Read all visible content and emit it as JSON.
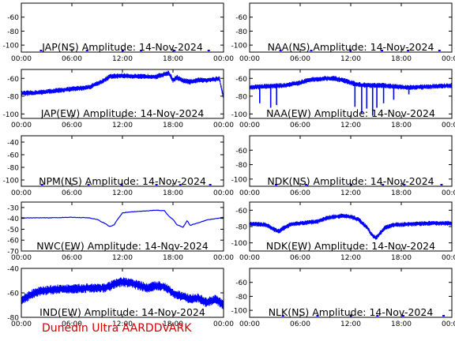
{
  "figure": {
    "credit": "Dunedin Ultra AARDDVARK",
    "line_color": "#0000ff",
    "credit_color": "#d00000"
  },
  "chart_data": [
    {
      "type": "line",
      "title": "JAP(NS) Amplitude: 14-Nov-2024",
      "xlabel": "",
      "ylabel": "",
      "x_ticks": [
        "00:00",
        "06:00",
        "12:00",
        "18:00",
        "00:00"
      ],
      "y_ticks": [
        -60,
        -80,
        -100
      ],
      "ylim": [
        -110,
        -40
      ],
      "grid": false,
      "series": [
        {
          "x": [],
          "y": []
        }
      ]
    },
    {
      "type": "line",
      "title": "NAA(NS) Amplitude: 14-Nov-2024",
      "xlabel": "",
      "ylabel": "",
      "x_ticks": [
        "00:00",
        "06:00",
        "12:00",
        "18:00",
        "00:00"
      ],
      "y_ticks": [
        -60,
        -80,
        -100
      ],
      "ylim": [
        -110,
        -40
      ],
      "grid": false,
      "series": [
        {
          "x": [],
          "y": []
        }
      ]
    },
    {
      "type": "line",
      "title": "JAP(EW) Amplitude: 14-Nov-2024",
      "xlabel": "",
      "ylabel": "",
      "x_ticks": [
        "00:00",
        "06:00",
        "12:00",
        "18:00",
        "00:00"
      ],
      "y_ticks": [
        -60,
        -80,
        -100
      ],
      "ylim": [
        -105,
        -50
      ],
      "grid": false,
      "noise": 3,
      "series": [
        {
          "x": [
            0,
            2,
            4,
            6,
            8,
            9.5,
            10.5,
            12,
            14,
            16,
            17.5,
            18,
            18.5,
            19,
            20,
            21,
            22,
            23,
            23.5,
            23.8,
            24
          ],
          "y": [
            -77,
            -76,
            -74,
            -72,
            -70,
            -64,
            -58,
            -57,
            -58,
            -58,
            -54,
            -62,
            -59,
            -62,
            -64,
            -62,
            -62,
            -61,
            -60,
            -74,
            -80
          ]
        }
      ]
    },
    {
      "type": "line",
      "title": "NAA(EW) Amplitude: 14-Nov-2024",
      "xlabel": "",
      "ylabel": "",
      "x_ticks": [
        "00:00",
        "06:00",
        "12:00",
        "18:00",
        "00:00"
      ],
      "y_ticks": [
        -60,
        -80,
        -100
      ],
      "ylim": [
        -105,
        -50
      ],
      "grid": false,
      "noise": 3,
      "series": [
        {
          "x": [
            0,
            2,
            4,
            6,
            7,
            8,
            9,
            10,
            11,
            12,
            13,
            14,
            15,
            16,
            18,
            20,
            22,
            24
          ],
          "y": [
            -70,
            -69,
            -68,
            -65,
            -62,
            -61,
            -60,
            -60,
            -62,
            -65,
            -67,
            -68,
            -68,
            -68,
            -70,
            -70,
            -69,
            -68
          ]
        }
      ],
      "spikes": [
        [
          1.2,
          -88
        ],
        [
          2.5,
          -93
        ],
        [
          3.2,
          -90
        ],
        [
          12.5,
          -92
        ],
        [
          13.3,
          -100
        ],
        [
          13.9,
          -94
        ],
        [
          14.6,
          -102
        ],
        [
          15.1,
          -93
        ],
        [
          15.9,
          -88
        ],
        [
          17.1,
          -84
        ],
        [
          18.9,
          -78
        ]
      ]
    },
    {
      "type": "line",
      "title": "NPM(NS) Amplitude: 14-Nov-2024",
      "xlabel": "",
      "ylabel": "",
      "x_ticks": [
        "00:00",
        "06:00",
        "12:00",
        "18:00",
        "00:00"
      ],
      "y_ticks": [
        -40,
        -60,
        -80,
        -100
      ],
      "ylim": [
        -110,
        -30
      ],
      "grid": false,
      "series": [
        {
          "x": [],
          "y": []
        }
      ]
    },
    {
      "type": "line",
      "title": "NDK(NS) Amplitude: 14-Nov-2024",
      "xlabel": "",
      "ylabel": "",
      "x_ticks": [
        "00:00",
        "06:00",
        "12:00",
        "18:00",
        "00:00"
      ],
      "y_ticks": [
        -60,
        -80,
        -100
      ],
      "ylim": [
        -110,
        -40
      ],
      "grid": false,
      "series": [
        {
          "x": [],
          "y": []
        }
      ]
    },
    {
      "type": "line",
      "title": "NWC(EW) Amplitude: 14-Nov-2024",
      "xlabel": "",
      "ylabel": "",
      "x_ticks": [
        "00:00",
        "06:00",
        "12:00",
        "18:00",
        "00:00"
      ],
      "y_ticks": [
        -30,
        -40,
        -50,
        -60,
        -70
      ],
      "ylim": [
        -70,
        -25
      ],
      "grid": false,
      "noise": 0.4,
      "series": [
        {
          "x": [
            0,
            3,
            6,
            8,
            9,
            10,
            10.5,
            11,
            11.5,
            12,
            13,
            15,
            16,
            17,
            17.5,
            18,
            18.5,
            19.2,
            19.7,
            20,
            21,
            22,
            24
          ],
          "y": [
            -39.5,
            -39.5,
            -39,
            -39.5,
            -41,
            -45,
            -47.5,
            -46,
            -40,
            -35,
            -34,
            -33,
            -32.5,
            -33,
            -38,
            -41,
            -46,
            -48,
            -42,
            -46.5,
            -44,
            -41.5,
            -39
          ]
        }
      ]
    },
    {
      "type": "line",
      "title": "NDK(EW) Amplitude: 14-Nov-2024",
      "xlabel": "",
      "ylabel": "",
      "x_ticks": [
        "00:00",
        "06:00",
        "12:00",
        "18:00",
        "00:00"
      ],
      "y_ticks": [
        -60,
        -80,
        -100
      ],
      "ylim": [
        -110,
        -50
      ],
      "grid": false,
      "noise": 3,
      "series": [
        {
          "x": [
            0,
            1,
            2,
            3,
            3.5,
            4,
            5,
            6,
            7,
            8,
            9,
            10,
            11,
            12,
            13,
            14,
            14.5,
            15,
            15.5,
            16,
            17,
            19,
            21,
            24
          ],
          "y": [
            -77,
            -77,
            -78,
            -84,
            -86,
            -82,
            -77,
            -76,
            -75,
            -74,
            -70,
            -68,
            -67,
            -68,
            -72,
            -82,
            -90,
            -94,
            -88,
            -82,
            -78,
            -77,
            -76,
            -76
          ]
        }
      ]
    },
    {
      "type": "line",
      "title": "IND(EW) Amplitude: 14-Nov-2024",
      "xlabel": "",
      "ylabel": "",
      "x_ticks": [
        "00:00",
        "06:00",
        "12:00",
        "18:00",
        "00:00"
      ],
      "y_ticks": [
        -40,
        -60,
        -80
      ],
      "ylim": [
        -80,
        -40
      ],
      "grid": false,
      "noise": 4,
      "series": [
        {
          "x": [
            0,
            1,
            2,
            4,
            6,
            8,
            10,
            11,
            12,
            13,
            14,
            15,
            16,
            17,
            18,
            19,
            20,
            21,
            22,
            23,
            24
          ],
          "y": [
            -66,
            -62,
            -59,
            -57,
            -57,
            -56,
            -56,
            -53,
            -51,
            -52,
            -54,
            -56,
            -54,
            -55,
            -60,
            -63,
            -65,
            -64,
            -68,
            -65,
            -70
          ]
        }
      ]
    },
    {
      "type": "line",
      "title": "NLK(NS) Amplitude: 14-Nov-2024",
      "xlabel": "",
      "ylabel": "",
      "x_ticks": [
        "00:00",
        "06:00",
        "12:00",
        "18:00",
        "00:00"
      ],
      "y_ticks": [
        -60,
        -80,
        -100
      ],
      "ylim": [
        -110,
        -40
      ],
      "grid": false,
      "series": [
        {
          "x": [],
          "y": []
        }
      ]
    }
  ]
}
